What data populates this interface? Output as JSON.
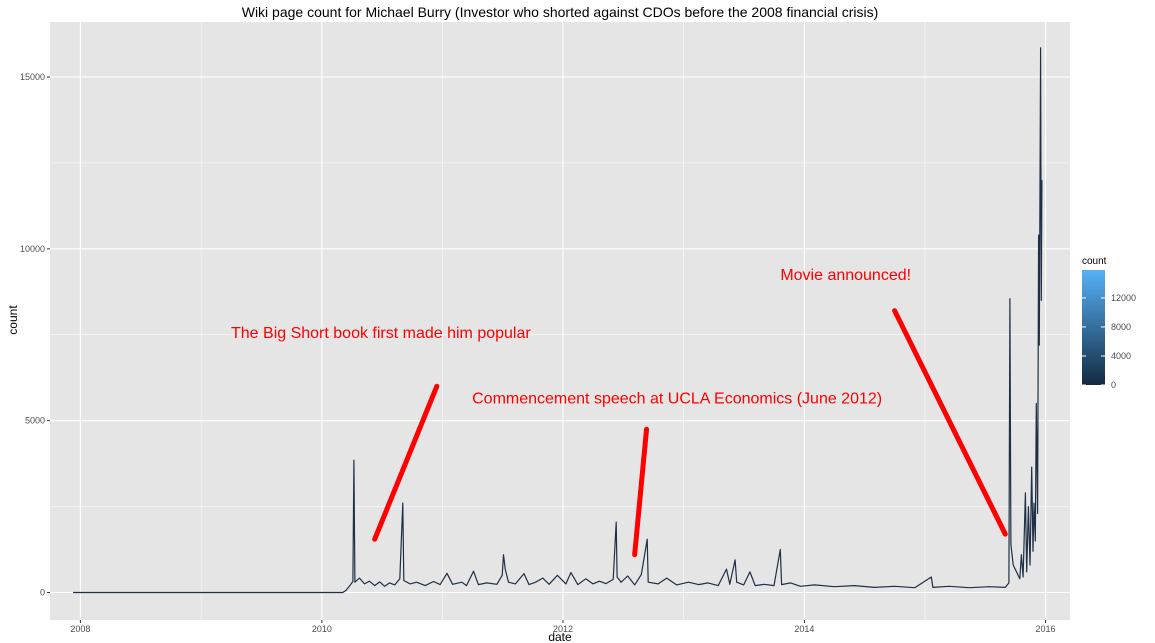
{
  "chart_data": {
    "type": "line",
    "title": "Wiki page count for Michael Burry (Investor who shorted against CDOs before the 2008 financial crisis)",
    "xlabel": "date",
    "ylabel": "count",
    "xlim": [
      "2007-10-01",
      "2016-03-15"
    ],
    "ylim": [
      -800,
      16600
    ],
    "x_ticks": [
      "2008",
      "2010",
      "2012",
      "2014",
      "2016"
    ],
    "x_tick_dates": [
      "2008-01-01",
      "2010-01-01",
      "2012-01-01",
      "2014-01-01",
      "2016-01-01"
    ],
    "y_ticks": [
      0,
      5000,
      10000,
      15000
    ],
    "grid": true,
    "line_color": "#1f2f45",
    "points": [
      [
        "2007-12-10",
        0
      ],
      [
        "2008-06-01",
        0
      ],
      [
        "2009-01-01",
        0
      ],
      [
        "2009-07-01",
        0
      ],
      [
        "2010-02-01",
        0
      ],
      [
        "2010-03-05",
        0
      ],
      [
        "2010-03-15",
        60
      ],
      [
        "2010-03-25",
        180
      ],
      [
        "2010-04-05",
        320
      ],
      [
        "2010-04-08",
        3850
      ],
      [
        "2010-04-11",
        300
      ],
      [
        "2010-04-25",
        420
      ],
      [
        "2010-05-10",
        250
      ],
      [
        "2010-05-25",
        330
      ],
      [
        "2010-06-10",
        200
      ],
      [
        "2010-06-25",
        310
      ],
      [
        "2010-07-10",
        180
      ],
      [
        "2010-07-25",
        280
      ],
      [
        "2010-08-10",
        220
      ],
      [
        "2010-08-25",
        400
      ],
      [
        "2010-09-03",
        2600
      ],
      [
        "2010-09-06",
        350
      ],
      [
        "2010-09-25",
        250
      ],
      [
        "2010-10-15",
        300
      ],
      [
        "2010-11-10",
        200
      ],
      [
        "2010-12-05",
        320
      ],
      [
        "2010-12-25",
        230
      ],
      [
        "2011-01-15",
        560
      ],
      [
        "2011-02-01",
        240
      ],
      [
        "2011-03-01",
        300
      ],
      [
        "2011-03-15",
        200
      ],
      [
        "2011-04-05",
        620
      ],
      [
        "2011-04-20",
        230
      ],
      [
        "2011-05-15",
        280
      ],
      [
        "2011-06-15",
        240
      ],
      [
        "2011-07-01",
        500
      ],
      [
        "2011-07-05",
        1100
      ],
      [
        "2011-07-10",
        680
      ],
      [
        "2011-07-20",
        300
      ],
      [
        "2011-08-10",
        250
      ],
      [
        "2011-09-05",
        550
      ],
      [
        "2011-09-20",
        230
      ],
      [
        "2011-10-10",
        300
      ],
      [
        "2011-11-01",
        420
      ],
      [
        "2011-11-20",
        240
      ],
      [
        "2011-12-15",
        500
      ],
      [
        "2012-01-10",
        250
      ],
      [
        "2012-01-25",
        580
      ],
      [
        "2012-02-15",
        230
      ],
      [
        "2012-03-10",
        400
      ],
      [
        "2012-04-01",
        250
      ],
      [
        "2012-04-20",
        330
      ],
      [
        "2012-05-10",
        260
      ],
      [
        "2012-06-01",
        380
      ],
      [
        "2012-06-10",
        2050
      ],
      [
        "2012-06-13",
        450
      ],
      [
        "2012-06-25",
        300
      ],
      [
        "2012-07-15",
        480
      ],
      [
        "2012-08-05",
        220
      ],
      [
        "2012-08-25",
        520
      ],
      [
        "2012-09-12",
        1550
      ],
      [
        "2012-09-15",
        300
      ],
      [
        "2012-10-15",
        250
      ],
      [
        "2012-11-10",
        420
      ],
      [
        "2012-12-10",
        220
      ],
      [
        "2013-01-15",
        300
      ],
      [
        "2013-02-15",
        230
      ],
      [
        "2013-03-15",
        280
      ],
      [
        "2013-04-15",
        200
      ],
      [
        "2013-05-10",
        680
      ],
      [
        "2013-05-20",
        240
      ],
      [
        "2013-06-05",
        950
      ],
      [
        "2013-06-10",
        300
      ],
      [
        "2013-07-01",
        220
      ],
      [
        "2013-07-20",
        600
      ],
      [
        "2013-08-05",
        200
      ],
      [
        "2013-09-01",
        240
      ],
      [
        "2013-10-01",
        200
      ],
      [
        "2013-10-20",
        1250
      ],
      [
        "2013-10-24",
        230
      ],
      [
        "2013-11-20",
        280
      ],
      [
        "2013-12-20",
        180
      ],
      [
        "2014-02-01",
        220
      ],
      [
        "2014-04-01",
        170
      ],
      [
        "2014-06-01",
        200
      ],
      [
        "2014-08-01",
        150
      ],
      [
        "2014-10-01",
        180
      ],
      [
        "2014-12-01",
        140
      ],
      [
        "2015-01-20",
        450
      ],
      [
        "2015-01-25",
        150
      ],
      [
        "2015-03-15",
        180
      ],
      [
        "2015-05-15",
        140
      ],
      [
        "2015-07-15",
        170
      ],
      [
        "2015-09-01",
        150
      ],
      [
        "2015-09-12",
        280
      ],
      [
        "2015-09-15",
        8550
      ],
      [
        "2015-09-18",
        1400
      ],
      [
        "2015-09-25",
        800
      ],
      [
        "2015-10-05",
        600
      ],
      [
        "2015-10-15",
        400
      ],
      [
        "2015-10-20",
        1100
      ],
      [
        "2015-10-25",
        450
      ],
      [
        "2015-11-01",
        2900
      ],
      [
        "2015-11-05",
        600
      ],
      [
        "2015-11-10",
        2500
      ],
      [
        "2015-11-15",
        800
      ],
      [
        "2015-11-20",
        3650
      ],
      [
        "2015-11-24",
        1200
      ],
      [
        "2015-11-27",
        2600
      ],
      [
        "2015-12-01",
        1500
      ],
      [
        "2015-12-04",
        5500
      ],
      [
        "2015-12-08",
        2300
      ],
      [
        "2015-12-11",
        10400
      ],
      [
        "2015-12-13",
        7200
      ],
      [
        "2015-12-17",
        15850
      ],
      [
        "2015-12-19",
        8500
      ],
      [
        "2015-12-21",
        12000
      ]
    ],
    "annotations": [
      {
        "text": "The Big Short book first made him popular",
        "x": "2009-04-01",
        "y": 7400
      },
      {
        "text": "Commencement speech at UCLA Economics (June 2012)",
        "x": "2011-04-01",
        "y": 5500
      },
      {
        "text": "Movie announced!",
        "x": "2013-10-20",
        "y": 9100
      }
    ],
    "arrows": [
      {
        "from": [
          "2010-12-15",
          6000
        ],
        "to": [
          "2010-06-10",
          1550
        ]
      },
      {
        "from": [
          "2012-09-10",
          4750
        ],
        "to": [
          "2012-08-05",
          1100
        ]
      },
      {
        "from": [
          "2014-10-01",
          8200
        ],
        "to": [
          "2015-09-01",
          1700
        ]
      }
    ],
    "legend": {
      "title": "count",
      "placement": "right",
      "labels": [
        "12000",
        "8000",
        "4000",
        "0"
      ],
      "label_values": [
        12000,
        8000,
        4000,
        0
      ],
      "min": 0,
      "max": 15850,
      "color_low": "#132b43",
      "color_high": "#56b1f7"
    },
    "colors": {
      "panel": "#e5e5e5",
      "grid": "#ffffff",
      "annotation": "#ff0000"
    }
  }
}
